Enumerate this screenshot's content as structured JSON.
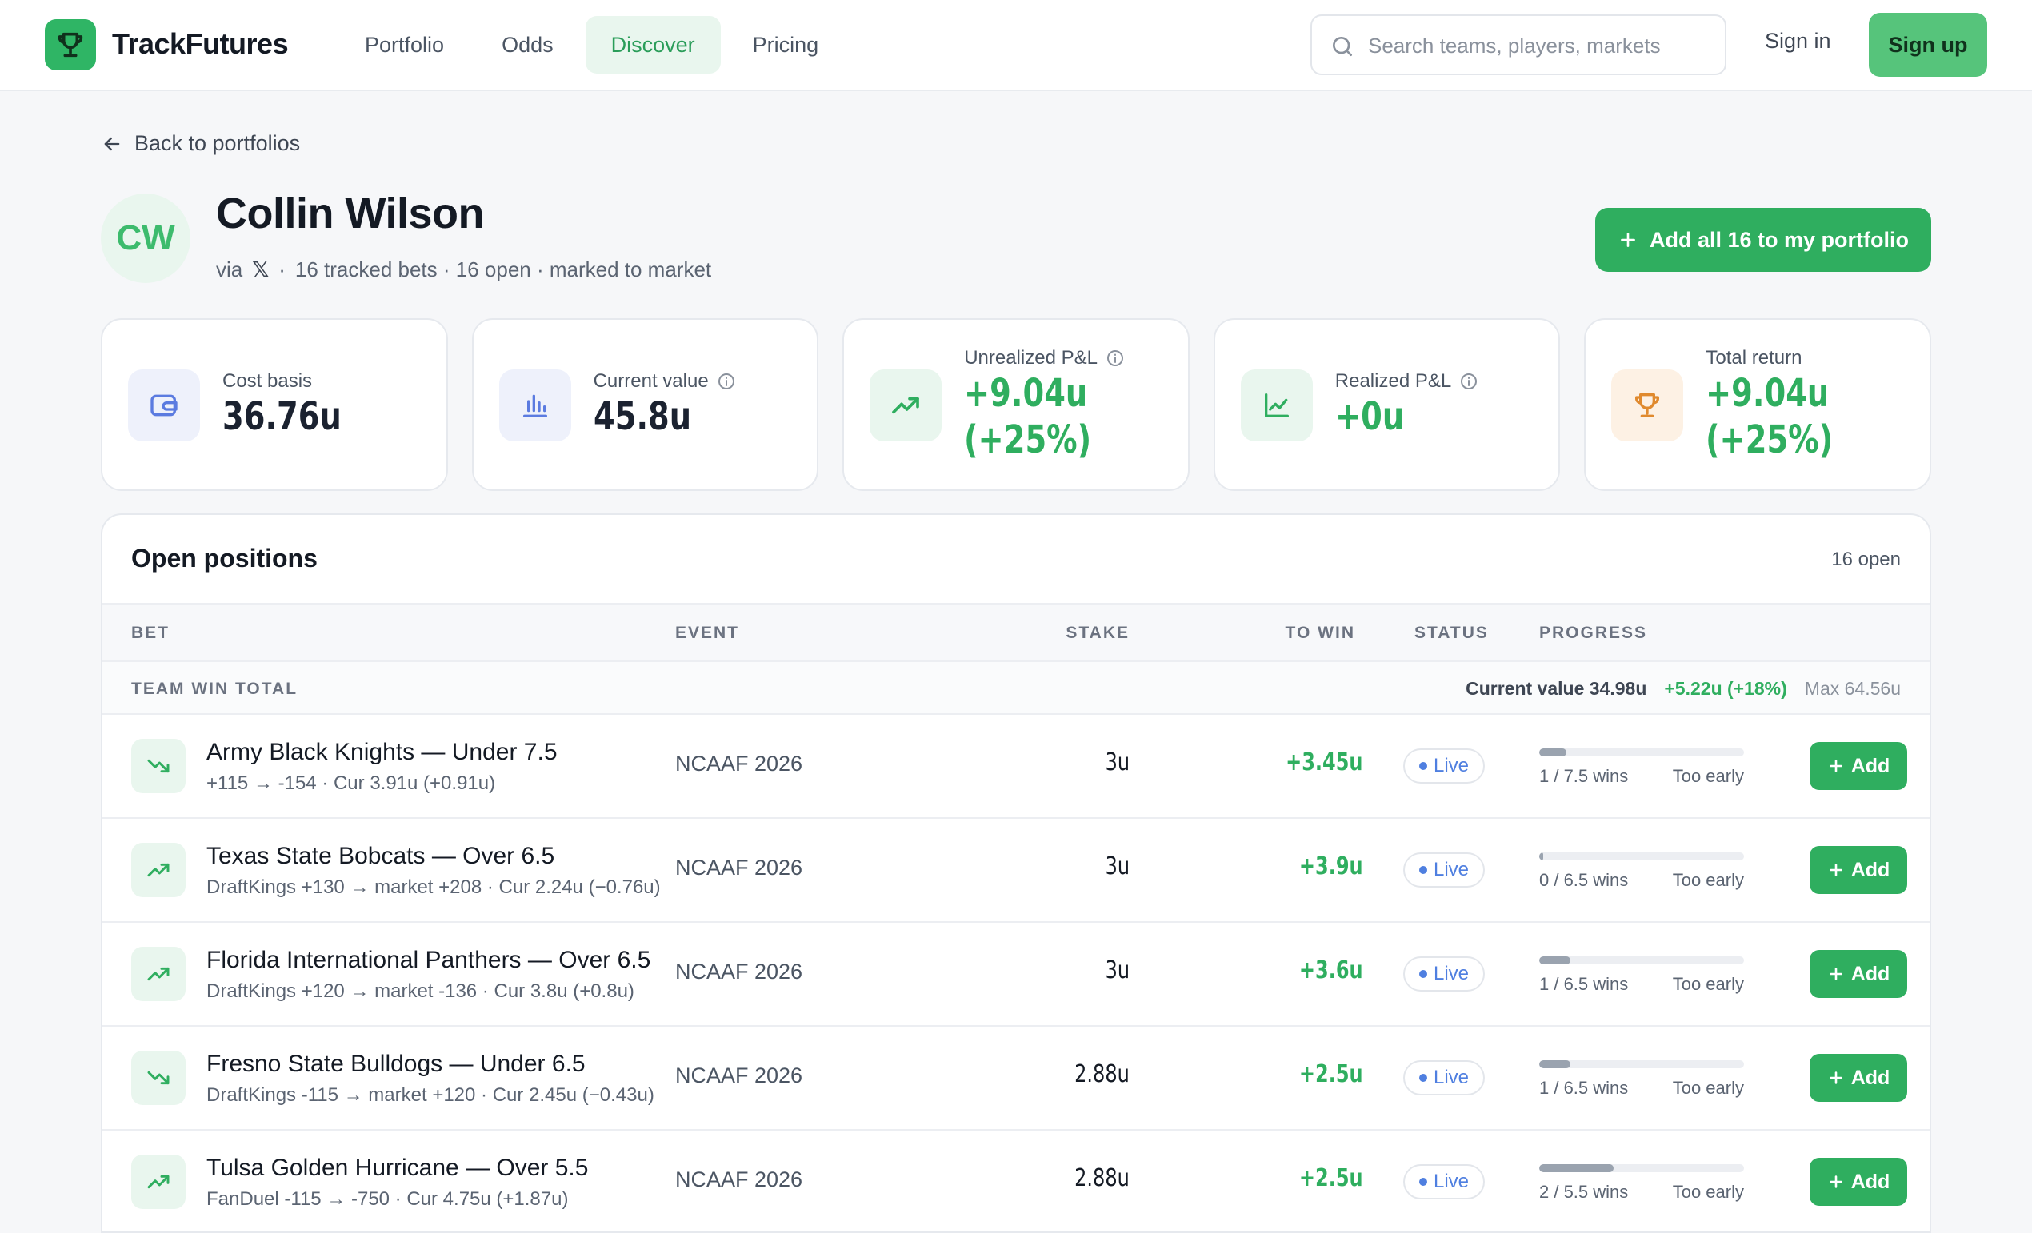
{
  "app": {
    "brand": "TrackFutures",
    "nav": [
      {
        "label": "Portfolio"
      },
      {
        "label": "Odds"
      },
      {
        "label": "Discover"
      },
      {
        "label": "Pricing"
      }
    ],
    "search_placeholder": "Search teams, players, markets",
    "signin_label": "Sign in",
    "signup_label": "Sign up"
  },
  "profile": {
    "back_label": "Back to portfolios",
    "initials": "CW",
    "name": "Collin Wilson",
    "via_label": "via",
    "source_icon": "x-logo",
    "meta_separator": "·",
    "summary": "16 tracked bets · 16 open · marked to market",
    "add_all_label": "Add all 16 to my portfolio"
  },
  "stats": [
    {
      "label": "Cost basis",
      "value": "36.76u",
      "icon": "wallet-icon",
      "color": "#1b2230",
      "icon_bg": "#eef1fb",
      "icon_color": "#5b7be0"
    },
    {
      "label": "Current value",
      "value": "45.8u",
      "icon": "bar-chart-icon",
      "color": "#1b2230",
      "icon_bg": "#eef1fb",
      "icon_color": "#5b7be0"
    },
    {
      "label": "Unrealized P&L",
      "value_line1": "+9.04u",
      "value_line2": "(+25%)",
      "icon": "trending-up-icon",
      "color": "#2fae5f",
      "icon_bg": "#e9f6ee",
      "icon_color": "#2fae5f"
    },
    {
      "label": "Realized P&L",
      "value": "+0u",
      "icon": "line-chart-icon",
      "color": "#2fae5f",
      "icon_bg": "#e9f6ee",
      "icon_color": "#2fae5f"
    },
    {
      "label": "Total return",
      "value_line1": "+9.04u",
      "value_line2": "(+25%)",
      "icon": "trophy-icon",
      "color": "#2fae5f",
      "icon_bg": "#fdf1e4",
      "icon_color": "#e08a2e"
    }
  ],
  "positions": {
    "title": "Open positions",
    "count_label": "16 open",
    "columns": [
      "BET",
      "EVENT",
      "STAKE",
      "TO WIN",
      "STATUS",
      "PROGRESS"
    ],
    "group": {
      "label": "TEAM WIN TOTAL",
      "current_value": "Current value 34.98u",
      "pl": "+5.22u (+18%)",
      "max": "Max 64.56u"
    },
    "rows": [
      {
        "trend": "down",
        "title": "Army Black Knights — Under 7.5",
        "sub": "+115 → -154 · Cur 3.91u (+0.91u)",
        "event": "NCAAF 2026",
        "stake": "3u",
        "to_win": "+3.45u",
        "status": "Live",
        "progress": 0.133,
        "wins": "1 / 7.5 wins",
        "note": "Too early",
        "add_label": "Add"
      },
      {
        "trend": "up",
        "title": "Texas State Bobcats — Over 6.5",
        "sub": "DraftKings +130 → market +208 · Cur 2.24u (−0.76u)",
        "event": "NCAAF 2026",
        "stake": "3u",
        "to_win": "+3.9u",
        "status": "Live",
        "progress": 0.0,
        "wins": "0 / 6.5 wins",
        "note": "Too early",
        "add_label": "Add"
      },
      {
        "trend": "up",
        "title": "Florida International Panthers — Over 6.5",
        "sub": "DraftKings +120 → market -136 · Cur 3.8u (+0.8u)",
        "event": "NCAAF 2026",
        "stake": "3u",
        "to_win": "+3.6u",
        "status": "Live",
        "progress": 0.154,
        "wins": "1 / 6.5 wins",
        "note": "Too early",
        "add_label": "Add"
      },
      {
        "trend": "down",
        "title": "Fresno State Bulldogs — Under 6.5",
        "sub": "DraftKings -115 → market +120 · Cur 2.45u (−0.43u)",
        "event": "NCAAF 2026",
        "stake": "2.88u",
        "to_win": "+2.5u",
        "status": "Live",
        "progress": 0.154,
        "wins": "1 / 6.5 wins",
        "note": "Too early",
        "add_label": "Add"
      },
      {
        "trend": "up",
        "title": "Tulsa Golden Hurricane — Over 5.5",
        "sub": "FanDuel -115 → -750 · Cur 4.75u (+1.87u)",
        "event": "NCAAF 2026",
        "stake": "2.88u",
        "to_win": "+2.5u",
        "status": "Live",
        "progress": 0.364,
        "wins": "2 / 5.5 wins",
        "note": "Too early",
        "add_label": "Add"
      }
    ]
  },
  "colors": {
    "brand_green": "#2fae5f",
    "live_blue": "#4f7fe0"
  }
}
